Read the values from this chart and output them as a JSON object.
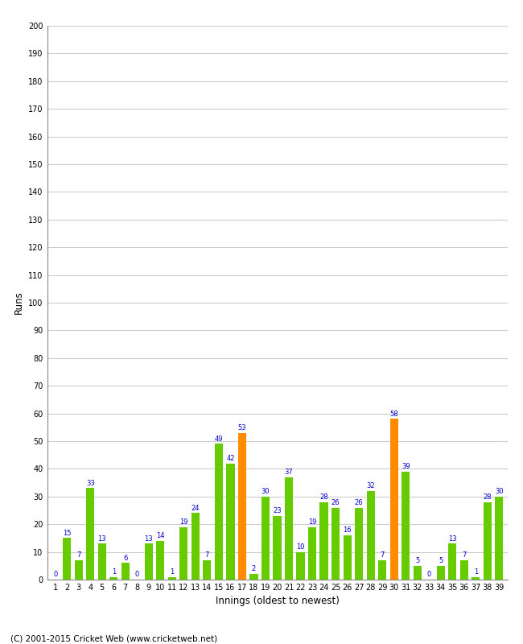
{
  "innings": [
    1,
    2,
    3,
    4,
    5,
    6,
    7,
    8,
    9,
    10,
    11,
    12,
    13,
    14,
    15,
    16,
    17,
    18,
    19,
    20,
    21,
    22,
    23,
    24,
    25,
    26,
    27,
    28,
    29,
    30,
    31,
    32,
    33,
    34,
    35,
    36,
    37,
    38,
    39
  ],
  "values": [
    0,
    15,
    7,
    33,
    13,
    1,
    6,
    0,
    13,
    14,
    1,
    19,
    24,
    7,
    49,
    42,
    53,
    2,
    30,
    23,
    37,
    10,
    19,
    28,
    26,
    16,
    26,
    32,
    7,
    58,
    39,
    5,
    0,
    5,
    13,
    7,
    1,
    28,
    30
  ],
  "colors": [
    "#66cc00",
    "#66cc00",
    "#66cc00",
    "#66cc00",
    "#66cc00",
    "#66cc00",
    "#66cc00",
    "#66cc00",
    "#66cc00",
    "#66cc00",
    "#66cc00",
    "#66cc00",
    "#66cc00",
    "#66cc00",
    "#66cc00",
    "#66cc00",
    "#ff8c00",
    "#66cc00",
    "#66cc00",
    "#66cc00",
    "#66cc00",
    "#66cc00",
    "#66cc00",
    "#66cc00",
    "#66cc00",
    "#66cc00",
    "#66cc00",
    "#66cc00",
    "#66cc00",
    "#ff8c00",
    "#66cc00",
    "#66cc00",
    "#66cc00",
    "#66cc00",
    "#66cc00",
    "#66cc00",
    "#66cc00",
    "#66cc00",
    "#66cc00"
  ],
  "xlabel": "Innings (oldest to newest)",
  "ylabel": "Runs",
  "ylim": [
    0,
    200
  ],
  "yticks": [
    0,
    10,
    20,
    30,
    40,
    50,
    60,
    70,
    80,
    90,
    100,
    110,
    120,
    130,
    140,
    150,
    160,
    170,
    180,
    190,
    200
  ],
  "background_color": "#ffffff",
  "grid_color": "#cccccc",
  "label_color": "#0000cc",
  "footer": "(C) 2001-2015 Cricket Web (www.cricketweb.net)",
  "bar_width": 0.7,
  "label_fontsize": 6.0,
  "tick_fontsize": 7.0,
  "axis_label_fontsize": 8.5,
  "footer_fontsize": 7.5
}
